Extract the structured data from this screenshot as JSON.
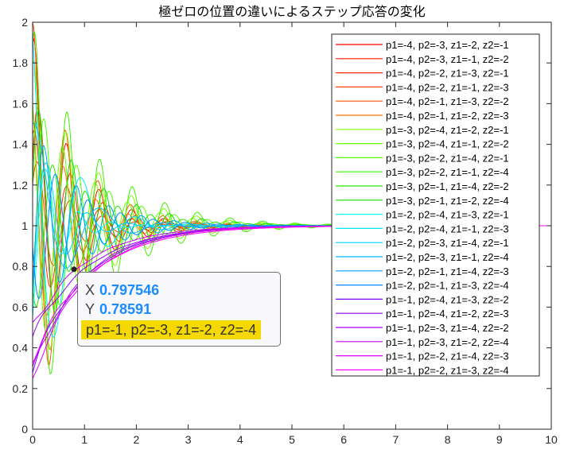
{
  "chart_data": {
    "type": "line",
    "title": "極ゼロの位置の違いによるステップ応答の変化",
    "xlabel": "",
    "ylabel": "",
    "xlim": [
      0,
      10
    ],
    "ylim": [
      0,
      2
    ],
    "xticks": [
      "0",
      "1",
      "2",
      "3",
      "4",
      "5",
      "6",
      "7",
      "8",
      "9",
      "10"
    ],
    "yticks": [
      "0",
      "0.2",
      "0.4",
      "0.6",
      "0.8",
      "1",
      "1.2",
      "1.4",
      "1.6",
      "1.8",
      "2"
    ],
    "grid": false,
    "legend_position": "top-right",
    "series": [
      {
        "name": "p1=-4, p2=-3, z1=-2, z2=-1",
        "color": "#ff0000",
        "y0": 1.9,
        "omega": 10,
        "decay": 1.3,
        "b": 0.3
      },
      {
        "name": "p1=-4, p2=-3, z1=-1, z2=-2",
        "color": "#ff1500",
        "y0": 1.3,
        "omega": 10,
        "decay": 1.3,
        "b": 0.6
      },
      {
        "name": "p1=-4, p2=-2, z1=-3, z2=-1",
        "color": "#ff2b00",
        "y0": 1.45,
        "omega": 10,
        "decay": 1.4,
        "b": 0.2
      },
      {
        "name": "p1=-4, p2=-2, z1=-1, z2=-3",
        "color": "#ff4000",
        "y0": 1.2,
        "omega": 10,
        "decay": 1.5,
        "b": 0.3
      },
      {
        "name": "p1=-4, p2=-1, z1=-3, z2=-2",
        "color": "#ff5500",
        "y0": 2.0,
        "omega": 10,
        "decay": 1.2,
        "b": 0.1
      },
      {
        "name": "p1=-4, p2=-1, z1=-2, z2=-3",
        "color": "#ff7000",
        "y0": 1.6,
        "omega": 10,
        "decay": 1.3,
        "b": -0.2
      },
      {
        "name": "p1=-3, p2=-4, z1=-2, z2=-1",
        "color": "#80ff00",
        "y0": 1.8,
        "omega": 10,
        "decay": 0.9,
        "b": 0.2
      },
      {
        "name": "p1=-3, p2=-4, z1=-1, z2=-2",
        "color": "#6aff00",
        "y0": 1.6,
        "omega": 10,
        "decay": 0.95,
        "b": -0.3
      },
      {
        "name": "p1=-3, p2=-2, z1=-4, z2=-1",
        "color": "#55ff00",
        "y0": 0.6,
        "omega": 10,
        "decay": 0.9,
        "b": 0.5
      },
      {
        "name": "p1=-3, p2=-2, z1=-1, z2=-4",
        "color": "#40f000",
        "y0": 1.9,
        "omega": 10,
        "decay": 0.85,
        "b": 0.4
      },
      {
        "name": "p1=-3, p2=-1, z1=-4, z2=-2",
        "color": "#2ae600",
        "y0": 0.7,
        "omega": 10,
        "decay": 0.9,
        "b": -0.3
      },
      {
        "name": "p1=-3, p2=-1, z1=-2, z2=-4",
        "color": "#15dc00",
        "y0": 1.2,
        "omega": 10,
        "decay": 0.9,
        "b": 0.6
      },
      {
        "name": "p1=-2, p2=-4, z1=-3, z2=-1",
        "color": "#00ffff",
        "y0": 0.55,
        "omega": 10,
        "decay": 2.2,
        "b": 0.2
      },
      {
        "name": "p1=-2, p2=-4, z1=-1, z2=-3",
        "color": "#00e8ff",
        "y0": 1.95,
        "omega": 6,
        "decay": 1.6,
        "b": -0.5
      },
      {
        "name": "p1=-2, p2=-3, z1=-4, z2=-1",
        "color": "#00d0ff",
        "y0": 0.65,
        "omega": 8,
        "decay": 2.0,
        "b": 0.4
      },
      {
        "name": "p1=-2, p2=-3, z1=-1, z2=-4",
        "color": "#00b8ff",
        "y0": 1.5,
        "omega": 5,
        "decay": 1.4,
        "b": 0.2
      },
      {
        "name": "p1=-2, p2=-1, z1=-4, z2=-3",
        "color": "#00a0ff",
        "y0": 0.7,
        "omega": 10,
        "decay": 1.1,
        "b": 0.4
      },
      {
        "name": "p1=-2, p2=-1, z1=-3, z2=-4",
        "color": "#0088ff",
        "y0": 0.9,
        "omega": 10,
        "decay": 1.1,
        "b": -0.4
      },
      {
        "name": "p1=-1, p2=-4, z1=-3, z2=-2",
        "color": "#7a00ff",
        "y0": 0.3,
        "rate": 1.0
      },
      {
        "name": "p1=-1, p2=-4, z1=-2, z2=-3",
        "color": "#9400ff",
        "y0": 0.45,
        "rate": 0.95
      },
      {
        "name": "p1=-1, p2=-3, z1=-4, z2=-2",
        "color": "#ad00ff",
        "y0": 0.28,
        "rate": 1.05
      },
      {
        "name": "p1=-1, p2=-3, z1=-2, z2=-4",
        "color": "#c800ff",
        "y0": 0.5,
        "rate": 1.0
      },
      {
        "name": "p1=-1, p2=-2, z1=-4, z2=-3",
        "color": "#e400ff",
        "y0": 0.25,
        "rate": 1.0
      },
      {
        "name": "p1=-1, p2=-2, z1=-3, z2=-4",
        "color": "#ff00ff",
        "y0": 0.35,
        "rate": 0.9
      }
    ]
  },
  "datatip": {
    "x_label": "X",
    "x_value": "0.797546",
    "y_label": "Y",
    "y_value": "0.78591",
    "series_label": "p1=-1, p2=-3, z1=-2, z2=-4",
    "point": [
      0.797546,
      0.78591
    ]
  }
}
